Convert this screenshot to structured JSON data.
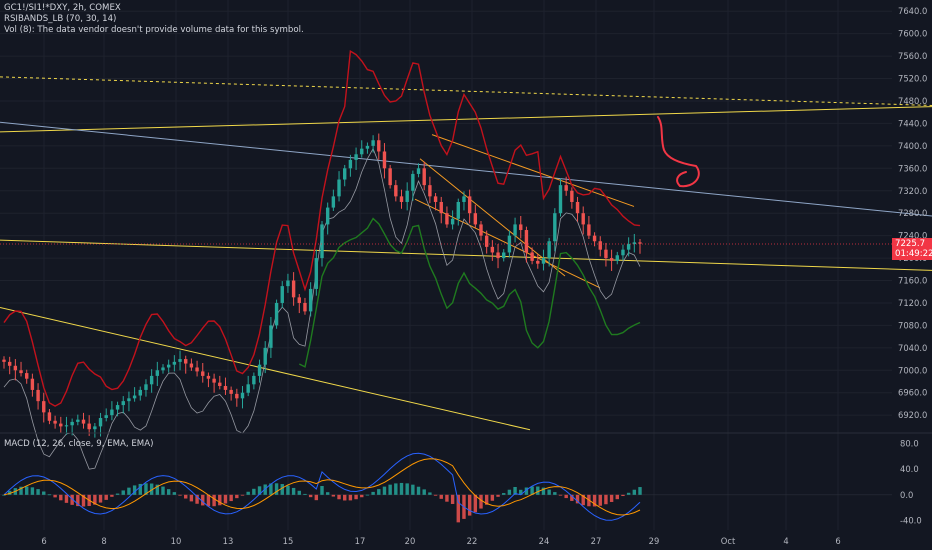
{
  "header": {
    "symbol_line": "GC1!/SI1!*DXY, 2h, COMEX",
    "indicator_line": "RSIBANDS_LB (70, 30, 14)",
    "volume_line": "Vol (8): The data vendor doesn't provide volume data for this symbol."
  },
  "macd": {
    "label": "MACD (12, 26, close, 9, EMA, EMA)",
    "axis_labels": [
      "80.0",
      "40.0",
      "0.0",
      "-40.0"
    ],
    "axis_values": [
      80,
      40,
      0,
      -40
    ]
  },
  "price_axis": {
    "labels": [
      "7640.0",
      "7600.0",
      "7560.0",
      "7520.0",
      "7480.0",
      "7440.0",
      "7400.0",
      "7360.0",
      "7320.0",
      "7280.0",
      "7240.0",
      "7200.0",
      "7160.0",
      "7120.0",
      "7080.0",
      "7040.0",
      "7000.0",
      "6960.0",
      "6920.0"
    ],
    "values": [
      7640,
      7600,
      7560,
      7520,
      7480,
      7440,
      7400,
      7360,
      7320,
      7280,
      7240,
      7200,
      7160,
      7120,
      7080,
      7040,
      7000,
      6960,
      6920
    ]
  },
  "last_price": {
    "value": "7225.7",
    "countdown": "01:49:22"
  },
  "time_axis": {
    "labels": [
      "6",
      "8",
      "10",
      "13",
      "15",
      "17",
      "20",
      "22",
      "24",
      "27",
      "29",
      "Oct",
      "4",
      "6"
    ]
  },
  "colors": {
    "background": "#131722",
    "up_candle": "#26a69a",
    "down_candle": "#ef5350",
    "rsi_upper_band": "#c2121c",
    "rsi_lower_band": "#1f7a1f",
    "rsi_line": "#9598a1",
    "trendline_yellow": "#f0d84a",
    "trendline_orange": "#f59b23",
    "trendline_blue": "#8fa6c7",
    "annotation": "#f23645",
    "macd_line": "#2962ff",
    "signal_line": "#ff9800"
  },
  "chart_data": {
    "type": "candlestick",
    "symbol": "GC1!/SI1!*DXY",
    "interval": "2h",
    "ylim": [
      6890,
      7660
    ],
    "macd_ylim": [
      -55,
      95
    ],
    "grid": true,
    "last": 7225.7,
    "trend_lines": [
      {
        "color": "yellow",
        "style": "dashed",
        "points": [
          [
            0,
            7523
          ],
          [
            932,
            7472
          ]
        ]
      },
      {
        "color": "yellow",
        "style": "solid",
        "points": [
          [
            0,
            7425
          ],
          [
            932,
            7470
          ]
        ]
      },
      {
        "color": "blue",
        "style": "solid",
        "points": [
          [
            0,
            7442
          ],
          [
            932,
            7275
          ]
        ]
      },
      {
        "color": "yellow",
        "style": "solid",
        "points": [
          [
            0,
            7232
          ],
          [
            932,
            7178
          ]
        ]
      },
      {
        "color": "yellow",
        "style": "solid",
        "points": [
          [
            0,
            7112
          ],
          [
            530,
            6894
          ]
        ]
      },
      {
        "color": "orange",
        "style": "solid",
        "points": [
          [
            432,
            7420
          ],
          [
            634,
            7292
          ]
        ]
      },
      {
        "color": "orange",
        "style": "solid",
        "points": [
          [
            420,
            7377
          ],
          [
            565,
            7168
          ]
        ]
      },
      {
        "color": "orange",
        "style": "solid",
        "points": [
          [
            415,
            7305
          ],
          [
            600,
            7147
          ]
        ]
      }
    ],
    "close": [
      7015,
      7008,
      7000,
      6995,
      6985,
      6965,
      6945,
      6925,
      6910,
      6905,
      6900,
      6902,
      6908,
      6912,
      6905,
      6895,
      6900,
      6915,
      6920,
      6930,
      6938,
      6945,
      6950,
      6955,
      6965,
      6975,
      6990,
      7000,
      7005,
      7010,
      7015,
      7020,
      7012,
      7005,
      6998,
      6990,
      6985,
      6978,
      6972,
      6965,
      6958,
      6950,
      6960,
      6975,
      6990,
      7010,
      7040,
      7080,
      7120,
      7150,
      7160,
      7130,
      7120,
      7105,
      7145,
      7200,
      7260,
      7290,
      7310,
      7340,
      7360,
      7375,
      7385,
      7395,
      7400,
      7410,
      7390,
      7360,
      7330,
      7310,
      7300,
      7320,
      7350,
      7360,
      7330,
      7310,
      7300,
      7280,
      7260,
      7270,
      7300,
      7310,
      7280,
      7260,
      7240,
      7220,
      7210,
      7200,
      7210,
      7240,
      7260,
      7250,
      7210,
      7195,
      7190,
      7200,
      7230,
      7280,
      7330,
      7320,
      7300,
      7280,
      7260,
      7240,
      7230,
      7215,
      7200,
      7195,
      7205,
      7215,
      7225,
      7228,
      7225.7
    ]
  }
}
